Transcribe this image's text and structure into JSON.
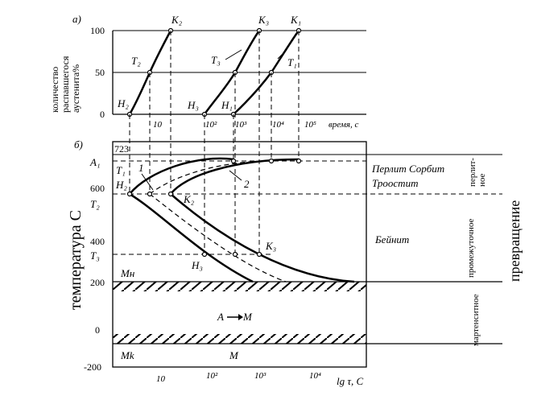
{
  "top_panel": {
    "panel_label": "а)",
    "ylabel": [
      "количество",
      "распавшегося",
      "аустенита%"
    ],
    "y_ticks": [
      "100",
      "50",
      "0"
    ],
    "x_ticks": [
      "10",
      "10²",
      "10³",
      "10⁴",
      "10⁵"
    ],
    "xlabel": "время, с",
    "curves": [
      {
        "start": "Н₂",
        "mid": "Т₂",
        "end": "К₂"
      },
      {
        "start": "Н₃",
        "mid": "Т₃",
        "end": "К₃"
      },
      {
        "start": "Н₁",
        "mid": "Т₁",
        "end": "К₁"
      }
    ]
  },
  "bottom_panel": {
    "panel_label": "б)",
    "ylabel": "температура С",
    "y_ticks": [
      "723",
      "600",
      "400",
      "200",
      "0",
      "-200"
    ],
    "level_labels": {
      "A1": "А₁",
      "T1": "Т₁",
      "T2": "Т₂",
      "T3": "Т₃",
      "MH": "Мн",
      "Mk": "Мk"
    },
    "x_ticks": [
      "10",
      "10²",
      "10³",
      "10⁴"
    ],
    "xlabel": "lg τ, С",
    "point_labels": {
      "H2": "Н₂",
      "K2": "К₂",
      "H3": "Н₃",
      "K3": "К₃",
      "curve1": "1",
      "curve2": "2"
    },
    "zone_labels": {
      "pearlite": "Перлит Сорбит",
      "troostite": "Троостит",
      "bainite": "Бейнит",
      "a_to_m_left": "А",
      "a_to_m_right": "М",
      "martensite": "М"
    },
    "side_labels": {
      "pearlite_transformation": [
        "перлит-",
        "ное"
      ],
      "intermediate": "промежуточное",
      "martensitic": "мартенситное",
      "transformation": "превращение"
    }
  },
  "colors": {
    "line": "#000000",
    "background": "#ffffff"
  }
}
